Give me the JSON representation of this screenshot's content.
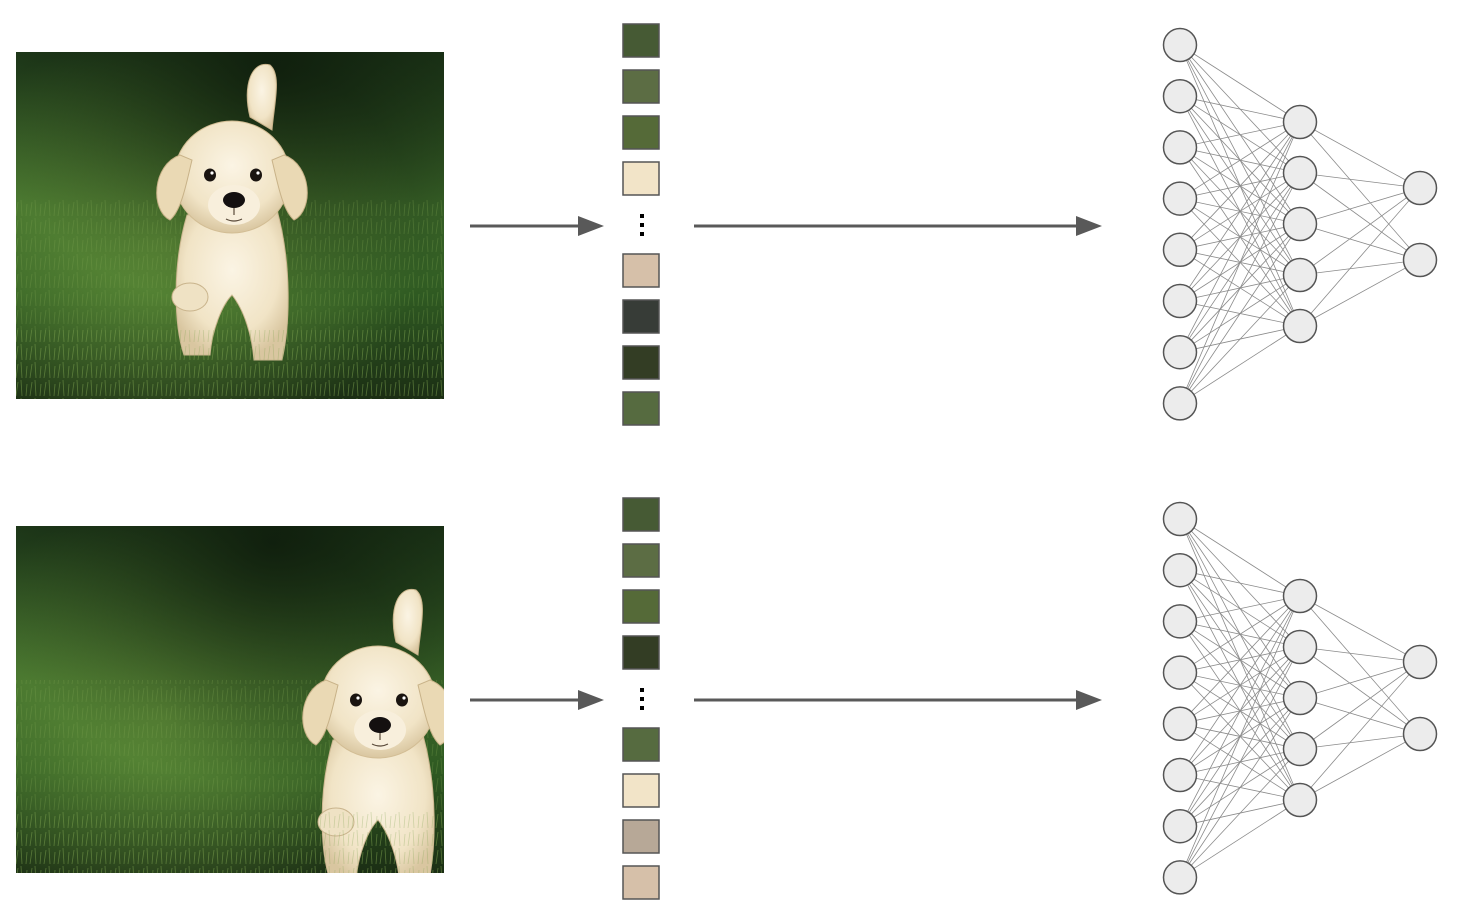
{
  "rows": [
    {
      "name": "centered-puppy",
      "vector_colors": [
        "#465a34",
        "#5c6d44",
        "#556a38",
        "#f2e4c8",
        "#d6c0a9",
        "#373c37",
        "#333d24",
        "#566b40"
      ]
    },
    {
      "name": "shifted-puppy",
      "vector_colors": [
        "#465a34",
        "#5c6d44",
        "#556a38",
        "#333d24",
        "#566b40",
        "#f2e4c8",
        "#b7a897",
        "#d6c0a9"
      ]
    }
  ],
  "network": {
    "layers": [
      8,
      5,
      2
    ]
  },
  "colors": {
    "arrow": "#595959",
    "node_fill": "#ececec",
    "node_stroke": "#555555",
    "edge": "#8a8a8a",
    "cell_stroke": "#555555",
    "ellipsis": "#000000"
  }
}
